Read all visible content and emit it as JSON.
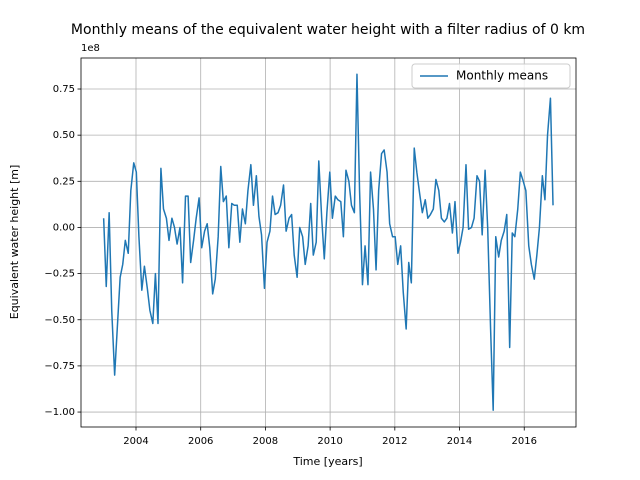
{
  "chart_data": {
    "type": "line",
    "title": "Monthly means of the equivalent water height with a filter radius of 0 km",
    "x_label": "Time [years]",
    "y_label": "Equivalent water height [m]",
    "y_offset_label": "1e8",
    "legend_position": "upper right",
    "grid": true,
    "xlim": [
      2002.3,
      2017.6
    ],
    "xticks": [
      2004,
      2006,
      2008,
      2010,
      2012,
      2014,
      2016
    ],
    "ylim": [
      -1.081,
      0.918
    ],
    "yticks": [
      {
        "value": -1,
        "label": "−1.00"
      },
      {
        "value": -0.75,
        "label": "−0.75"
      },
      {
        "value": -0.5,
        "label": "−0.50"
      },
      {
        "value": -0.25,
        "label": "−0.25"
      },
      {
        "value": 0,
        "label": "0.00"
      },
      {
        "value": 0.25,
        "label": "0.25"
      },
      {
        "value": 0.5,
        "label": "0.50"
      },
      {
        "value": 0.75,
        "label": "0.75"
      }
    ],
    "x": [
      2003.0,
      2003.08,
      2003.17,
      2003.25,
      2003.34,
      2003.42,
      2003.51,
      2003.59,
      2003.67,
      2003.76,
      2003.84,
      2003.93,
      2004.01,
      2004.09,
      2004.18,
      2004.26,
      2004.35,
      2004.43,
      2004.52,
      2004.6,
      2004.68,
      2004.77,
      2004.85,
      2004.94,
      2005.02,
      2005.11,
      2005.19,
      2005.27,
      2005.36,
      2005.44,
      2005.53,
      2005.61,
      2005.69,
      2005.78,
      2005.86,
      2005.95,
      2006.03,
      2006.12,
      2006.2,
      2006.28,
      2006.37,
      2006.45,
      2006.54,
      2006.62,
      2006.7,
      2006.79,
      2006.87,
      2006.96,
      2007.04,
      2007.13,
      2007.21,
      2007.29,
      2007.38,
      2007.46,
      2007.55,
      2007.63,
      2007.72,
      2007.8,
      2007.88,
      2007.97,
      2008.05,
      2008.14,
      2008.22,
      2008.3,
      2008.39,
      2008.47,
      2008.56,
      2008.64,
      2008.73,
      2008.81,
      2008.89,
      2008.98,
      2009.06,
      2009.15,
      2009.23,
      2009.32,
      2009.4,
      2009.48,
      2009.57,
      2009.65,
      2009.74,
      2009.82,
      2009.9,
      2009.99,
      2010.07,
      2010.16,
      2010.24,
      2010.33,
      2010.41,
      2010.49,
      2010.58,
      2010.66,
      2010.75,
      2010.83,
      2010.91,
      2011.0,
      2011.08,
      2011.17,
      2011.25,
      2011.34,
      2011.42,
      2011.5,
      2011.59,
      2011.67,
      2011.76,
      2011.84,
      2011.93,
      2012.01,
      2012.09,
      2012.18,
      2012.26,
      2012.35,
      2012.43,
      2012.51,
      2012.6,
      2012.68,
      2012.77,
      2012.85,
      2012.94,
      2013.02,
      2013.1,
      2013.19,
      2013.27,
      2013.36,
      2013.44,
      2013.53,
      2013.61,
      2013.69,
      2013.78,
      2013.86,
      2013.95,
      2014.03,
      2014.11,
      2014.2,
      2014.28,
      2014.37,
      2014.45,
      2014.54,
      2014.62,
      2014.7,
      2014.79,
      2014.87,
      2014.96,
      2015.04,
      2015.12,
      2015.21,
      2015.29,
      2015.38,
      2015.46,
      2015.55,
      2015.63,
      2015.71,
      2015.8,
      2015.88,
      2015.97,
      2016.05,
      2016.14,
      2016.22,
      2016.31,
      2016.39,
      2016.47,
      2016.56,
      2016.64,
      2016.72,
      2016.81,
      2016.89
    ],
    "series": [
      {
        "name": "Monthly means",
        "color": "#1f77b4",
        "values": [
          0.05,
          -0.32,
          0.08,
          -0.45,
          -0.8,
          -0.55,
          -0.27,
          -0.2,
          -0.07,
          -0.14,
          0.2,
          0.35,
          0.3,
          -0.05,
          -0.34,
          -0.21,
          -0.33,
          -0.45,
          -0.52,
          -0.25,
          -0.52,
          0.32,
          0.1,
          0.05,
          -0.07,
          0.05,
          0.0,
          -0.09,
          0.0,
          -0.3,
          0.17,
          0.17,
          -0.19,
          -0.07,
          0.05,
          0.16,
          -0.11,
          -0.02,
          0.02,
          -0.11,
          -0.36,
          -0.28,
          -0.05,
          0.33,
          0.14,
          0.17,
          -0.11,
          0.13,
          0.12,
          0.12,
          -0.08,
          0.1,
          0.02,
          0.2,
          0.34,
          0.12,
          0.28,
          0.06,
          -0.04,
          -0.33,
          -0.08,
          -0.02,
          0.17,
          0.07,
          0.08,
          0.12,
          0.23,
          -0.02,
          0.05,
          0.07,
          -0.15,
          -0.27,
          0.0,
          -0.05,
          -0.2,
          -0.1,
          0.13,
          -0.15,
          -0.08,
          0.36,
          0.05,
          -0.17,
          0.08,
          0.3,
          0.05,
          0.17,
          0.15,
          0.14,
          -0.05,
          0.31,
          0.25,
          0.12,
          0.08,
          0.83,
          0.2,
          -0.31,
          -0.1,
          -0.31,
          0.3,
          0.1,
          -0.23,
          0.2,
          0.4,
          0.42,
          0.3,
          0.02,
          -0.05,
          -0.05,
          -0.2,
          -0.1,
          -0.35,
          -0.55,
          -0.19,
          -0.3,
          0.43,
          0.3,
          0.18,
          0.08,
          0.15,
          0.05,
          0.07,
          0.1,
          0.26,
          0.2,
          0.05,
          0.03,
          0.05,
          0.13,
          -0.03,
          0.14,
          -0.14,
          -0.08,
          0.0,
          0.34,
          -0.01,
          0.0,
          0.05,
          0.28,
          0.25,
          -0.04,
          0.31,
          0.0,
          -0.55,
          -0.99,
          -0.05,
          -0.16,
          -0.07,
          -0.02,
          0.07,
          -0.65,
          -0.03,
          -0.05,
          0.1,
          0.3,
          0.25,
          0.2,
          -0.1,
          -0.2,
          -0.28,
          -0.15,
          0.0,
          0.28,
          0.15,
          0.5,
          0.7,
          0.12
        ]
      }
    ]
  }
}
